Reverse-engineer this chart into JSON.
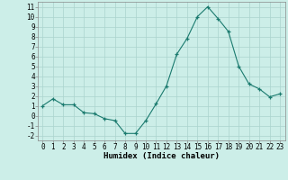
{
  "x": [
    0,
    1,
    2,
    3,
    4,
    5,
    6,
    7,
    8,
    9,
    10,
    11,
    12,
    13,
    14,
    15,
    16,
    17,
    18,
    19,
    20,
    21,
    22,
    23
  ],
  "y": [
    1.0,
    1.7,
    1.1,
    1.1,
    0.3,
    0.2,
    -0.3,
    -0.5,
    -1.8,
    -1.8,
    -0.5,
    1.2,
    3.0,
    6.2,
    7.8,
    10.0,
    11.0,
    9.8,
    8.5,
    5.0,
    3.2,
    2.7,
    1.9,
    2.2
  ],
  "xlabel": "Humidex (Indice chaleur)",
  "ylim": [
    -2.5,
    11.5
  ],
  "xlim": [
    -0.5,
    23.5
  ],
  "yticks": [
    -2,
    -1,
    0,
    1,
    2,
    3,
    4,
    5,
    6,
    7,
    8,
    9,
    10,
    11
  ],
  "xticks": [
    0,
    1,
    2,
    3,
    4,
    5,
    6,
    7,
    8,
    9,
    10,
    11,
    12,
    13,
    14,
    15,
    16,
    17,
    18,
    19,
    20,
    21,
    22,
    23
  ],
  "line_color": "#1a7a6e",
  "marker": "+",
  "bg_color": "#cceee8",
  "grid_color": "#aad4ce",
  "axis_color": "#888888",
  "font_color": "#000000",
  "xlabel_fontsize": 6.5,
  "tick_fontsize": 5.5
}
